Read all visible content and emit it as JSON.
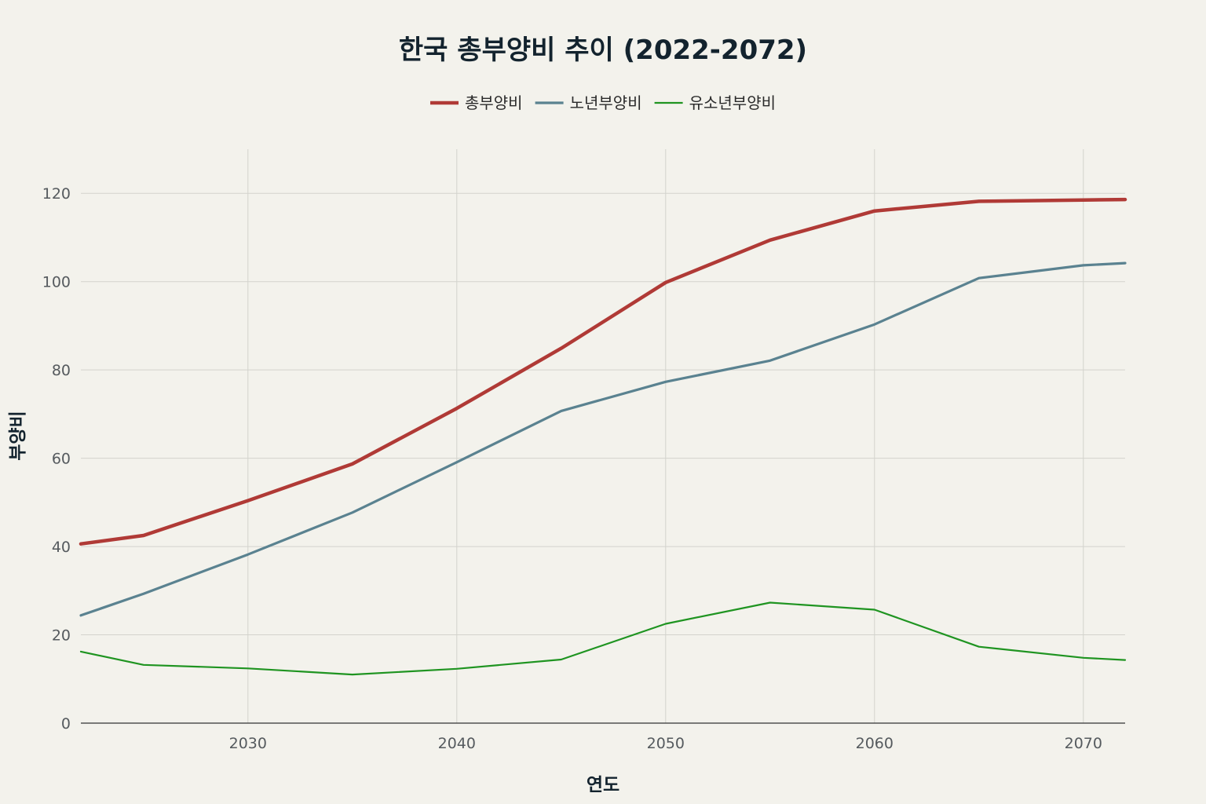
{
  "chart_data": {
    "type": "line",
    "title": "한국 총부양비 추이 (2022-2072)",
    "xlabel": "연도",
    "ylabel": "부양비",
    "xlim": [
      2022,
      2072
    ],
    "ylim": [
      0,
      130
    ],
    "x_ticks": [
      2030,
      2040,
      2050,
      2060,
      2070
    ],
    "x_tick_labels": [
      "2030",
      "2040",
      "2050",
      "2060",
      "2070"
    ],
    "y_ticks": [
      0,
      20,
      40,
      60,
      80,
      100,
      120
    ],
    "y_tick_labels": [
      "0",
      "20",
      "40",
      "60",
      "80",
      "100",
      "120"
    ],
    "grid": true,
    "legend_position": "top-center",
    "x": [
      2022,
      2025,
      2030,
      2035,
      2040,
      2045,
      2050,
      2055,
      2060,
      2065,
      2070,
      2072
    ],
    "series": [
      {
        "name": "총부양비",
        "color": "#b03a36",
        "values": [
          40.6,
          42.5,
          50.4,
          58.7,
          71.3,
          84.9,
          99.8,
          109.4,
          116.0,
          118.2,
          118.5,
          118.6
        ]
      },
      {
        "name": "노년부양비",
        "color": "#5a8290",
        "values": [
          24.4,
          29.3,
          38.2,
          47.7,
          59.1,
          70.7,
          77.3,
          82.1,
          90.3,
          100.8,
          103.7,
          104.2
        ]
      },
      {
        "name": "유소년부양비",
        "color": "#1f9421",
        "values": [
          16.2,
          13.2,
          12.4,
          11.0,
          12.3,
          14.4,
          22.5,
          27.3,
          25.7,
          17.3,
          14.8,
          14.3
        ]
      }
    ]
  }
}
